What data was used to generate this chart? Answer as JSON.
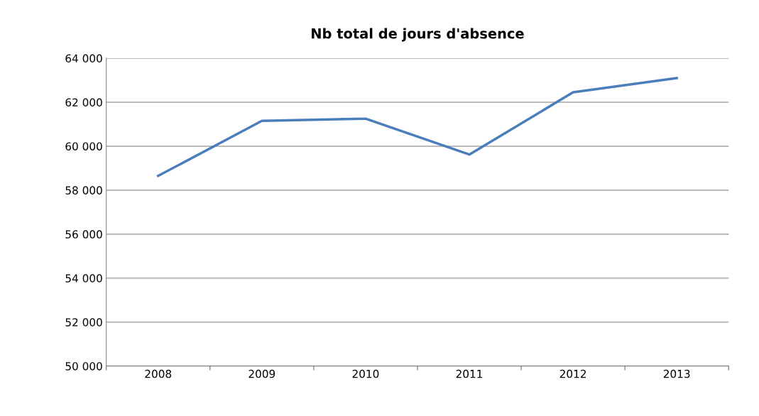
{
  "chart_data": {
    "type": "line",
    "title": "Nb total de jours d'absence",
    "categories": [
      "2008",
      "2009",
      "2010",
      "2011",
      "2012",
      "2013"
    ],
    "series": [
      {
        "color": "#4a7ebb",
        "values": [
          58650,
          61150,
          61250,
          59620,
          62450,
          63100
        ]
      }
    ],
    "ylim": [
      50000,
      64000
    ],
    "yticks": [
      {
        "value": 50000,
        "label": "50 000"
      },
      {
        "value": 52000,
        "label": "52 000"
      },
      {
        "value": 54000,
        "label": "54 000"
      },
      {
        "value": 56000,
        "label": "56 000"
      },
      {
        "value": 58000,
        "label": "58 000"
      },
      {
        "value": 60000,
        "label": "60 000"
      },
      {
        "value": 62000,
        "label": "62 000"
      },
      {
        "value": 64000,
        "label": "64 000"
      }
    ],
    "grid": "y",
    "legend": false,
    "marker": "none",
    "line_style": "solid"
  }
}
